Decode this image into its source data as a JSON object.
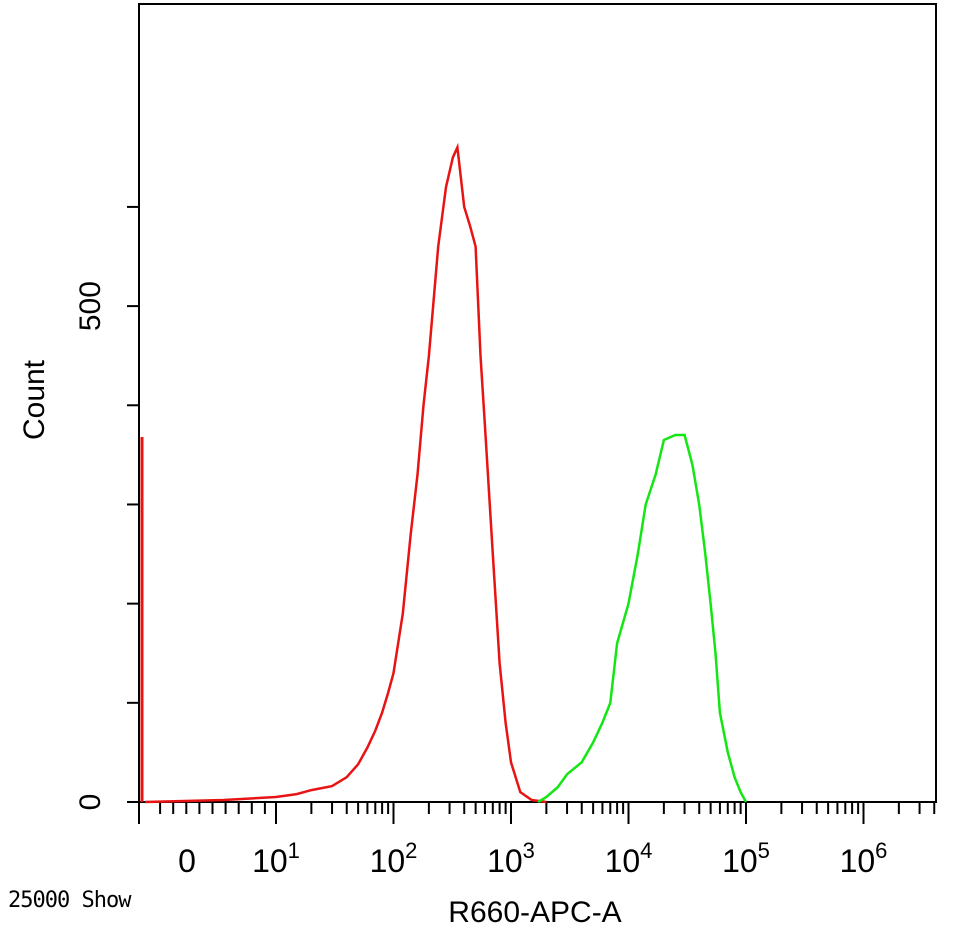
{
  "footer": {
    "event_count_label": "25000 Show"
  },
  "chart_data": {
    "type": "line",
    "title": "",
    "xlabel": "R660-APC-A",
    "ylabel": "Count",
    "x_scale": "biexponential/log",
    "xlim": [
      0,
      4000000
    ],
    "ylim": [
      0,
      700
    ],
    "grid": false,
    "colors": {
      "control": "#e81414",
      "stained": "#14e614",
      "axis": "#000000"
    },
    "x_tick_labels": [
      {
        "value": 0,
        "label": "0",
        "power": ""
      },
      {
        "value": 10,
        "label": "10",
        "power": "1"
      },
      {
        "value": 100,
        "label": "10",
        "power": "2"
      },
      {
        "value": 1000,
        "label": "10",
        "power": "3"
      },
      {
        "value": 10000,
        "label": "10",
        "power": "4"
      },
      {
        "value": 100000,
        "label": "10",
        "power": "5"
      },
      {
        "value": 1000000,
        "label": "10",
        "power": "6"
      }
    ],
    "y_major_ticks": [
      {
        "value": 0,
        "label": "0"
      },
      {
        "value": 500,
        "label": "500"
      }
    ],
    "y_minor_step": 100,
    "series": [
      {
        "color": "#e81414",
        "edge_spike": 368,
        "points": [
          [
            0,
            0
          ],
          [
            3,
            1
          ],
          [
            6,
            2
          ],
          [
            10,
            5
          ],
          [
            15,
            8
          ],
          [
            20,
            12
          ],
          [
            30,
            16
          ],
          [
            40,
            25
          ],
          [
            50,
            38
          ],
          [
            60,
            55
          ],
          [
            70,
            72
          ],
          [
            80,
            90
          ],
          [
            90,
            110
          ],
          [
            100,
            130
          ],
          [
            120,
            190
          ],
          [
            140,
            270
          ],
          [
            160,
            330
          ],
          [
            180,
            400
          ],
          [
            200,
            450
          ],
          [
            240,
            560
          ],
          [
            280,
            620
          ],
          [
            320,
            650
          ],
          [
            350,
            660
          ],
          [
            400,
            600
          ],
          [
            450,
            580
          ],
          [
            500,
            560
          ],
          [
            550,
            450
          ],
          [
            600,
            380
          ],
          [
            700,
            250
          ],
          [
            800,
            140
          ],
          [
            900,
            80
          ],
          [
            1000,
            40
          ],
          [
            1200,
            10
          ],
          [
            1500,
            2
          ],
          [
            2000,
            0
          ]
        ]
      },
      {
        "color": "#14e614",
        "points": [
          [
            1700,
            0
          ],
          [
            2000,
            5
          ],
          [
            2500,
            15
          ],
          [
            3000,
            28
          ],
          [
            4000,
            40
          ],
          [
            5000,
            60
          ],
          [
            6000,
            80
          ],
          [
            7000,
            100
          ],
          [
            8000,
            160
          ],
          [
            10000,
            200
          ],
          [
            12000,
            250
          ],
          [
            14000,
            300
          ],
          [
            17000,
            330
          ],
          [
            20000,
            365
          ],
          [
            25000,
            370
          ],
          [
            30000,
            370
          ],
          [
            35000,
            340
          ],
          [
            40000,
            300
          ],
          [
            45000,
            250
          ],
          [
            50000,
            200
          ],
          [
            55000,
            150
          ],
          [
            60000,
            90
          ],
          [
            70000,
            50
          ],
          [
            80000,
            25
          ],
          [
            90000,
            10
          ],
          [
            100000,
            0
          ]
        ]
      }
    ]
  }
}
